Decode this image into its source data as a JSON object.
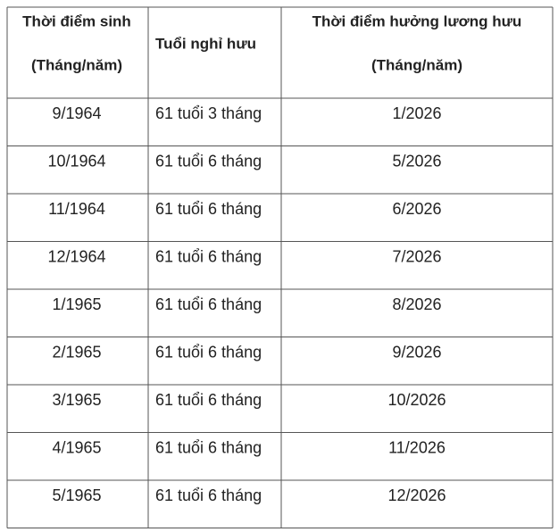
{
  "table": {
    "header": [
      [
        "Thời điểm sinh",
        "(Tháng/năm)"
      ],
      [
        "Tuổi nghỉ hưu"
      ],
      [
        "Thời điểm hưởng lương hưu",
        "(Tháng/năm)"
      ]
    ],
    "rows": [
      [
        "9/1964",
        "61 tuổi 3 tháng",
        "1/2026"
      ],
      [
        "10/1964",
        "61 tuổi 6 tháng",
        "5/2026"
      ],
      [
        "11/1964",
        "61 tuổi 6 tháng",
        "6/2026"
      ],
      [
        "12/1964",
        "61 tuổi 6 tháng",
        "7/2026"
      ],
      [
        "1/1965",
        "61 tuổi 6 tháng",
        "8/2026"
      ],
      [
        "2/1965",
        "61 tuổi 6 tháng",
        "9/2026"
      ],
      [
        "3/1965",
        "61 tuổi 6 tháng",
        "10/2026"
      ],
      [
        "4/1965",
        "61 tuổi 6 tháng",
        "11/2026"
      ],
      [
        "5/1965",
        "61 tuổi 6 tháng",
        "12/2026"
      ]
    ]
  }
}
